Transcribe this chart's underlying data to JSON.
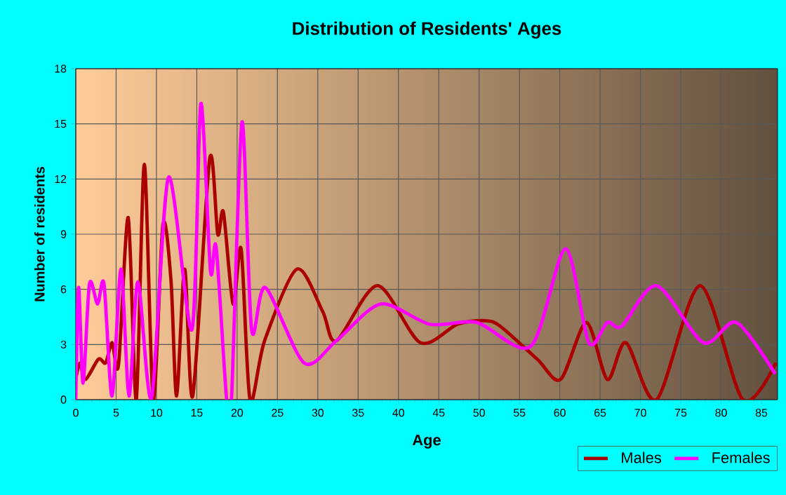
{
  "chart_data": {
    "type": "line",
    "title": "Distribution of Residents' Ages",
    "xlabel": "Age",
    "ylabel": "Number of residents",
    "xlim": [
      0,
      87
    ],
    "ylim": [
      0,
      18
    ],
    "xticks": [
      0,
      5,
      10,
      15,
      20,
      25,
      30,
      35,
      40,
      45,
      50,
      55,
      60,
      65,
      70,
      75,
      80,
      85
    ],
    "yticks": [
      0,
      3,
      6,
      9,
      12,
      15,
      18
    ],
    "grid": true,
    "legend": "bottom right",
    "series": [
      {
        "name": "Males",
        "color": "#aa0000",
        "x": [
          0,
          0.5,
          1.2,
          2.8,
          3.7,
          4.5,
          5.3,
          6.5,
          7.5,
          8.5,
          9.6,
          10.8,
          11.8,
          12.5,
          13.5,
          14.5,
          16.6,
          17.6,
          18.3,
          19.5,
          20.5,
          21.6,
          23.4,
          27.4,
          30.6,
          32.3,
          37.4,
          42.7,
          47.3,
          50.6,
          52.6,
          57.2,
          60.1,
          63.3,
          65.9,
          68.2,
          72,
          77.4,
          82.7,
          86.8
        ],
        "values": [
          1.1,
          2,
          1.1,
          2.2,
          2,
          3.1,
          1.9,
          9.9,
          0,
          12.8,
          0,
          9.5,
          6.5,
          0.2,
          7.1,
          0.2,
          13.1,
          9,
          10.2,
          5.2,
          8.2,
          0,
          3.2,
          7.1,
          4.8,
          3.2,
          6.2,
          3.1,
          4.1,
          4.3,
          4,
          2.2,
          1.1,
          4.2,
          1.1,
          3.1,
          0,
          6.2,
          0,
          2
        ]
      },
      {
        "name": "Females",
        "color": "#ff00ff",
        "x": [
          0,
          0.35,
          0.9,
          1.7,
          2.7,
          3.5,
          4.5,
          5.6,
          6.6,
          7.7,
          9.4,
          11.5,
          14.4,
          15.5,
          16.7,
          17.4,
          18.7,
          19.3,
          20.6,
          21.8,
          23.5,
          28.3,
          32.3,
          37.8,
          43.9,
          49.7,
          56.4,
          60.7,
          63.6,
          65.9,
          67.7,
          72,
          77.8,
          81.9,
          86.7
        ],
        "values": [
          0,
          6.1,
          0.9,
          6.3,
          5.2,
          6.3,
          0.2,
          7.1,
          0.2,
          6.4,
          0.1,
          12.1,
          3.8,
          16.1,
          7,
          8.3,
          0,
          0,
          15.1,
          3.8,
          6.1,
          2,
          3.2,
          5.2,
          4.1,
          4.2,
          2.9,
          8.2,
          3.1,
          4.2,
          4,
          6.2,
          3.1,
          4.2,
          1.4
        ]
      }
    ]
  }
}
